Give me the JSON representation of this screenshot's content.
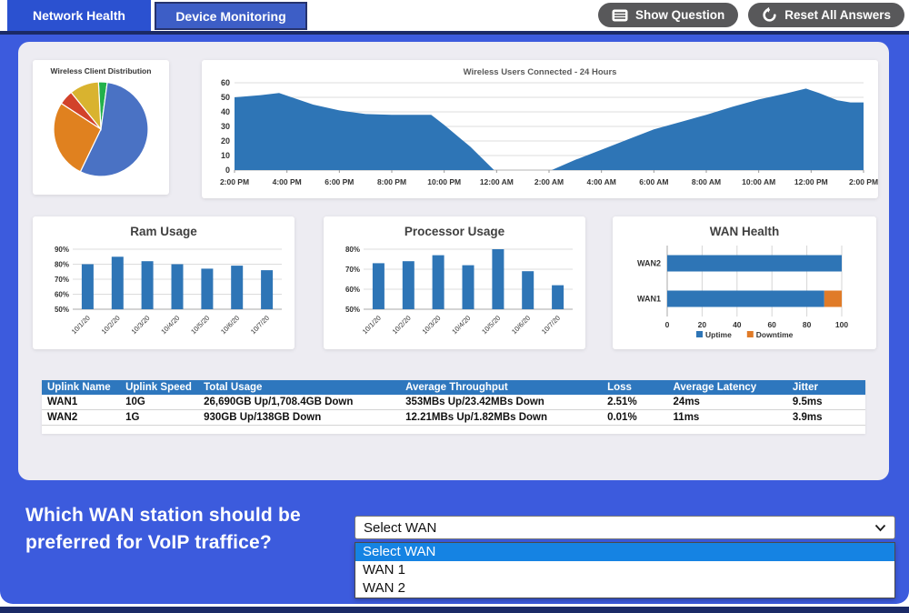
{
  "header": {
    "tabs": [
      {
        "label": "Network Health",
        "active": true
      },
      {
        "label": "Device Monitoring",
        "active": false
      }
    ],
    "show_question_label": "Show Question",
    "reset_label": "Reset All Answers"
  },
  "chart_data": [
    {
      "id": "wireless_client_distribution",
      "type": "pie",
      "title": "Wireless Client Distribution",
      "start_angle_deg": -3,
      "segments": [
        {
          "color": "#22B14C",
          "value": 3
        },
        {
          "color": "#4A72C4",
          "value": 55
        },
        {
          "color": "#E0811F",
          "value": 27
        },
        {
          "color": "#D2422A",
          "value": 5
        },
        {
          "color": "#D9B32F",
          "value": 10
        }
      ],
      "legend": false
    },
    {
      "id": "wireless_users_24h",
      "type": "area",
      "title": "Wireless Users Connected - 24 Hours",
      "color": "#2E75B6",
      "ylim": [
        0,
        60
      ],
      "yticks": [
        0,
        10,
        20,
        30,
        40,
        50,
        60
      ],
      "x_hours_span": 24,
      "x_tick_labels": [
        "2:00 PM",
        "4:00 PM",
        "6:00 PM",
        "8:00 PM",
        "10:00 PM",
        "12:00 AM",
        "2:00 AM",
        "4:00 AM",
        "6:00 AM",
        "8:00 AM",
        "10:00 AM",
        "12:00 PM",
        "2:00 PM"
      ],
      "points": [
        [
          0,
          50
        ],
        [
          1,
          51.5
        ],
        [
          1.7,
          53
        ],
        [
          3,
          45
        ],
        [
          4,
          41
        ],
        [
          5,
          38.5
        ],
        [
          6,
          38
        ],
        [
          7.5,
          38
        ],
        [
          8,
          31
        ],
        [
          9,
          16
        ],
        [
          9.9,
          0
        ],
        [
          12.1,
          0
        ],
        [
          13,
          7
        ],
        [
          14,
          14
        ],
        [
          15,
          21
        ],
        [
          16,
          28
        ],
        [
          17,
          33
        ],
        [
          18,
          38
        ],
        [
          19,
          43.5
        ],
        [
          20,
          48.5
        ],
        [
          21,
          52.5
        ],
        [
          21.8,
          56
        ],
        [
          22.3,
          53
        ],
        [
          23,
          48
        ],
        [
          23.5,
          46.5
        ],
        [
          24,
          46.5
        ]
      ]
    },
    {
      "id": "ram_usage",
      "type": "bar",
      "title": "Ram Usage",
      "color": "#2E75B6",
      "categories": [
        "10/1/20",
        "10/2/20",
        "10/3/20",
        "10/4/20",
        "10/5/20",
        "10/6/20",
        "10/7/20"
      ],
      "values": [
        80,
        85,
        82,
        80,
        77,
        79,
        76
      ],
      "ylim": [
        50,
        90
      ],
      "yticks": [
        50,
        60,
        70,
        80,
        90
      ],
      "y_suffix": "%"
    },
    {
      "id": "processor_usage",
      "type": "bar",
      "title": "Processor Usage",
      "color": "#2E75B6",
      "categories": [
        "10/1/20",
        "10/2/20",
        "10/3/20",
        "10/4/20",
        "10/5/20",
        "10/6/20",
        "10/7/20"
      ],
      "values": [
        73,
        74,
        77,
        72,
        80,
        69,
        62
      ],
      "ylim": [
        50,
        80
      ],
      "yticks": [
        50,
        60,
        70,
        80
      ],
      "y_suffix": "%"
    },
    {
      "id": "wan_health",
      "type": "hbar_stacked",
      "title": "WAN Health",
      "categories": [
        "WAN2",
        "WAN1"
      ],
      "series": [
        {
          "name": "Uptime",
          "color": "#2E75B6",
          "values": [
            100,
            90
          ]
        },
        {
          "name": "Downtime",
          "color": "#E07B28",
          "values": [
            0,
            10
          ]
        }
      ],
      "xlim": [
        0,
        100
      ],
      "xticks": [
        0,
        20,
        40,
        60,
        80,
        100
      ],
      "legend_position": "bottom"
    }
  ],
  "table": {
    "headers": [
      "Uplink Name",
      "Uplink Speed",
      "Total Usage",
      "Average Throughput",
      "Loss",
      "Average Latency",
      "Jitter"
    ],
    "rows": [
      [
        "WAN1",
        "10G",
        "26,690GB Up/1,708.4GB Down",
        "353MBs Up/23.42MBs Down",
        "2.51%",
        "24ms",
        "9.5ms"
      ],
      [
        "WAN2",
        "1G",
        "930GB Up/138GB Down",
        "12.21MBs Up/1.82MBs Down",
        "0.01%",
        "11ms",
        "3.9ms"
      ]
    ]
  },
  "question": {
    "line1": "Which WAN station should be",
    "line2": "preferred for VoIP traffice?"
  },
  "dropdown": {
    "value": "Select WAN",
    "options": [
      "Select WAN",
      "WAN 1",
      "WAN 2"
    ],
    "selected_index": 0
  },
  "colors": {
    "page_blue": "#3C5BDD",
    "navy": "#1B2A66",
    "panel_gray": "#EDECF2",
    "tab_active_blue": "#2B51D0",
    "tab_inactive_blue": "#3D5EC6",
    "button_gray": "#58585A",
    "table_header_blue": "#2E77BE",
    "chart_blue": "#2E75B6",
    "chart_orange": "#E07B28",
    "dropdown_highlight": "#1583E3"
  }
}
